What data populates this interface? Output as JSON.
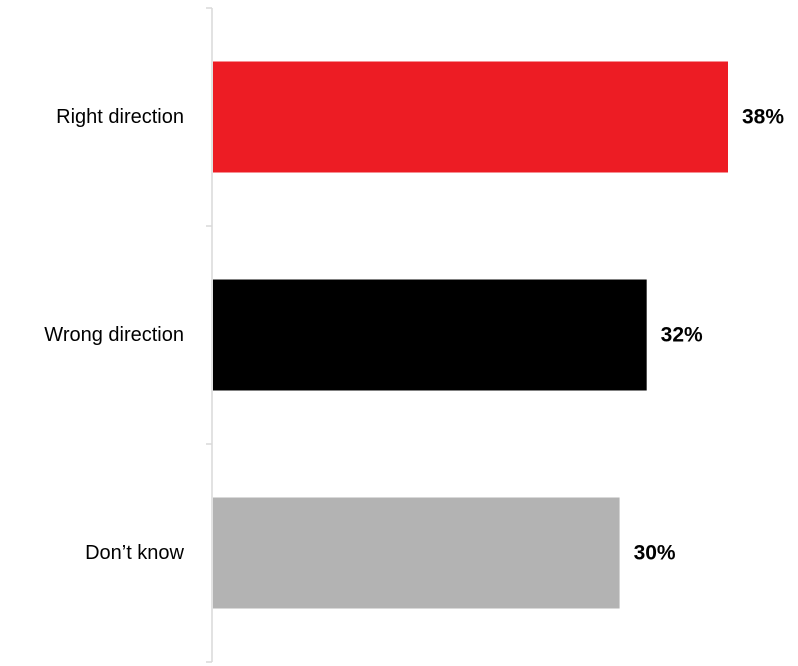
{
  "chart_data": {
    "type": "bar",
    "orientation": "horizontal",
    "categories": [
      "Right direction",
      "Wrong direction",
      "Don’t know"
    ],
    "values": [
      38,
      32,
      30
    ],
    "value_labels": [
      "38%",
      "32%",
      "30%"
    ],
    "colors": [
      "#ed1c24",
      "#000000",
      "#b3b3b3"
    ],
    "unit": "%",
    "xlim": [
      0,
      38
    ],
    "grid": false,
    "legend": "none",
    "title": "",
    "xlabel": "",
    "ylabel": ""
  }
}
